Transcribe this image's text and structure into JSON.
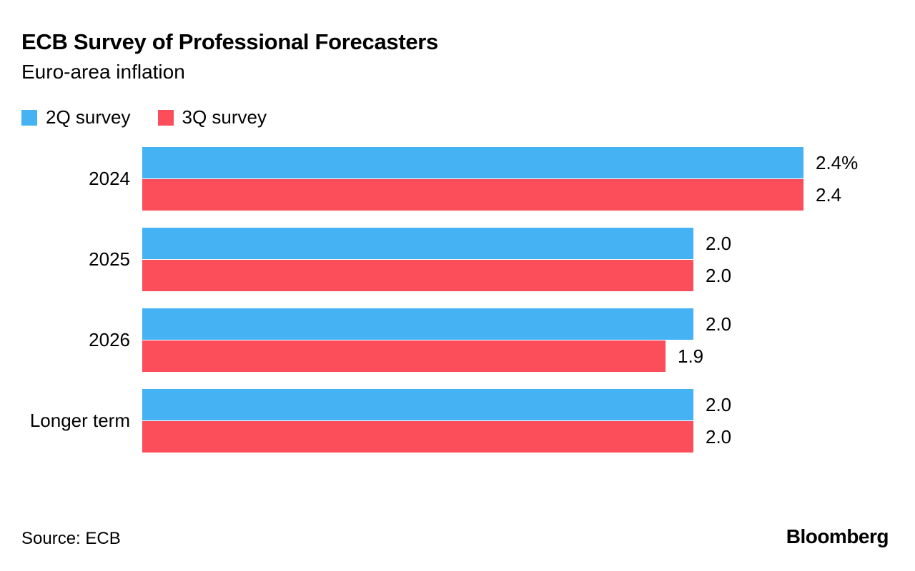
{
  "header": {
    "title": "ECB Survey of Professional Forecasters",
    "subtitle": "Euro-area inflation"
  },
  "legend": [
    {
      "label": "2Q survey",
      "color": "#45b2f4"
    },
    {
      "label": "3Q survey",
      "color": "#fb4d5a"
    }
  ],
  "chart_data": {
    "type": "bar",
    "orientation": "horizontal",
    "title": "ECB Survey of Professional Forecasters",
    "subtitle": "Euro-area inflation",
    "unit": "%",
    "categories": [
      "2024",
      "2025",
      "2026",
      "Longer term"
    ],
    "series": [
      {
        "name": "2Q survey",
        "color": "#45b2f4",
        "values": [
          2.4,
          2.0,
          2.0,
          2.0
        ],
        "value_labels": [
          "2.4%",
          "2.0",
          "2.0",
          "2.0"
        ]
      },
      {
        "name": "3Q survey",
        "color": "#fb4d5a",
        "values": [
          2.4,
          2.0,
          1.9,
          2.0
        ],
        "value_labels": [
          "2.4",
          "2.0",
          "1.9",
          "2.0"
        ]
      }
    ],
    "xlim": [
      0,
      2.8
    ],
    "grid": false,
    "axis_labels_visible": false,
    "legend_position": "top-left"
  },
  "footer": {
    "source": "Source: ECB",
    "brand": "Bloomberg"
  }
}
